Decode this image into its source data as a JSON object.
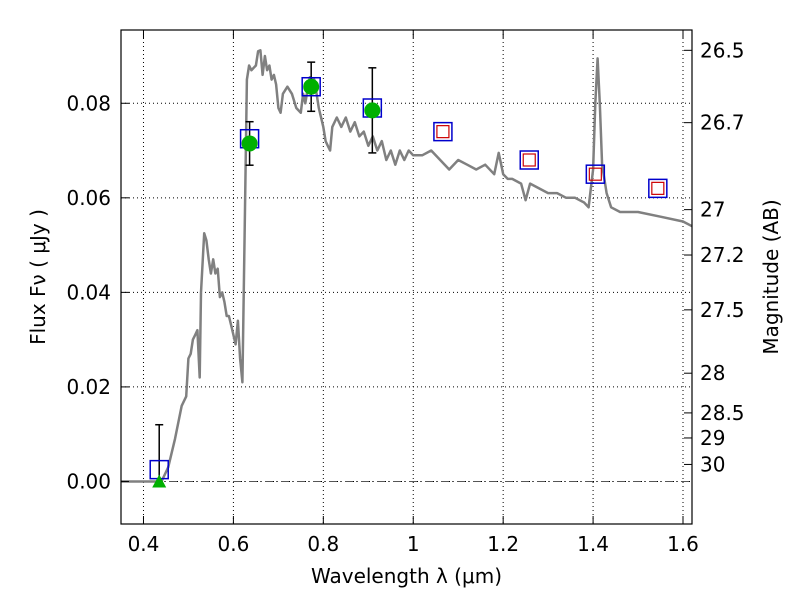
{
  "chart_data": {
    "type": "line",
    "xlabel": "Wavelength  λ (μm)",
    "ylabel": "Flux  Fν  ( μJy )",
    "y2label": "Magnitude (AB)",
    "xlim": [
      0.35,
      1.62
    ],
    "ylim": [
      -0.009,
      0.0955
    ],
    "grid": true,
    "xticks": [
      0.4,
      0.6,
      0.8,
      1.0,
      1.2,
      1.4,
      1.6
    ],
    "xtick_labels": [
      "0.4",
      "0.6",
      "0.8",
      "1",
      "1.2",
      "1.4",
      "1.6"
    ],
    "yticks": [
      0.0,
      0.02,
      0.04,
      0.06,
      0.08
    ],
    "ytick_labels": [
      "0.00",
      "0.02",
      "0.04",
      "0.06",
      "0.08"
    ],
    "y2_ticks": [
      {
        "label": "26.5",
        "flux": 0.0912
      },
      {
        "label": "26.7",
        "flux": 0.0759
      },
      {
        "label": "27",
        "flux": 0.0575
      },
      {
        "label": "27.2",
        "flux": 0.0479
      },
      {
        "label": "27.5",
        "flux": 0.0363
      },
      {
        "label": "28",
        "flux": 0.0229
      },
      {
        "label": "28.5",
        "flux": 0.0145
      },
      {
        "label": "29",
        "flux": 0.0092
      },
      {
        "label": "30",
        "flux": 0.0036
      }
    ],
    "zero_line": 0.0,
    "colors": {
      "model": "#808080",
      "observed": "#00b000",
      "box": "#0000cc",
      "inner_box": "#cc0000",
      "errorbar": "#000000",
      "zero_line": "#555555"
    },
    "series": [
      {
        "kind": "model_spectrum",
        "points": [
          [
            0.35,
            0.0
          ],
          [
            0.44,
            0.0
          ],
          [
            0.455,
            0.003
          ],
          [
            0.47,
            0.009
          ],
          [
            0.485,
            0.016
          ],
          [
            0.495,
            0.018
          ],
          [
            0.5,
            0.026
          ],
          [
            0.505,
            0.027
          ],
          [
            0.51,
            0.03
          ],
          [
            0.515,
            0.031
          ],
          [
            0.52,
            0.032
          ],
          [
            0.525,
            0.022
          ],
          [
            0.528,
            0.04
          ],
          [
            0.535,
            0.0525
          ],
          [
            0.54,
            0.051
          ],
          [
            0.545,
            0.047
          ],
          [
            0.55,
            0.044
          ],
          [
            0.555,
            0.047
          ],
          [
            0.56,
            0.044
          ],
          [
            0.565,
            0.045
          ],
          [
            0.57,
            0.039
          ],
          [
            0.575,
            0.04
          ],
          [
            0.58,
            0.038
          ],
          [
            0.585,
            0.035
          ],
          [
            0.59,
            0.035
          ],
          [
            0.595,
            0.033
          ],
          [
            0.6,
            0.031
          ],
          [
            0.605,
            0.029
          ],
          [
            0.61,
            0.034
          ],
          [
            0.615,
            0.026
          ],
          [
            0.62,
            0.021
          ],
          [
            0.625,
            0.052
          ],
          [
            0.63,
            0.085
          ],
          [
            0.635,
            0.088
          ],
          [
            0.64,
            0.087
          ],
          [
            0.65,
            0.088
          ],
          [
            0.655,
            0.091
          ],
          [
            0.66,
            0.0912
          ],
          [
            0.665,
            0.086
          ],
          [
            0.67,
            0.09
          ],
          [
            0.675,
            0.087
          ],
          [
            0.68,
            0.088
          ],
          [
            0.685,
            0.085
          ],
          [
            0.69,
            0.086
          ],
          [
            0.695,
            0.084
          ],
          [
            0.7,
            0.079
          ],
          [
            0.705,
            0.078
          ],
          [
            0.71,
            0.082
          ],
          [
            0.72,
            0.0835
          ],
          [
            0.73,
            0.082
          ],
          [
            0.74,
            0.079
          ],
          [
            0.75,
            0.078
          ],
          [
            0.755,
            0.082
          ],
          [
            0.76,
            0.08
          ],
          [
            0.765,
            0.083
          ],
          [
            0.77,
            0.0855
          ],
          [
            0.78,
            0.085
          ],
          [
            0.785,
            0.082
          ],
          [
            0.79,
            0.079
          ],
          [
            0.8,
            0.075
          ],
          [
            0.805,
            0.072
          ],
          [
            0.81,
            0.071
          ],
          [
            0.815,
            0.07
          ],
          [
            0.82,
            0.075
          ],
          [
            0.83,
            0.077
          ],
          [
            0.84,
            0.075
          ],
          [
            0.85,
            0.077
          ],
          [
            0.86,
            0.074
          ],
          [
            0.87,
            0.076
          ],
          [
            0.88,
            0.073
          ],
          [
            0.89,
            0.074
          ],
          [
            0.9,
            0.071
          ],
          [
            0.91,
            0.073
          ],
          [
            0.92,
            0.07
          ],
          [
            0.93,
            0.072
          ],
          [
            0.94,
            0.068
          ],
          [
            0.95,
            0.07
          ],
          [
            0.96,
            0.067
          ],
          [
            0.97,
            0.07
          ],
          [
            0.98,
            0.068
          ],
          [
            0.99,
            0.07
          ],
          [
            1.0,
            0.069
          ],
          [
            1.02,
            0.069
          ],
          [
            1.04,
            0.07
          ],
          [
            1.06,
            0.068
          ],
          [
            1.08,
            0.066
          ],
          [
            1.1,
            0.068
          ],
          [
            1.12,
            0.067
          ],
          [
            1.14,
            0.066
          ],
          [
            1.16,
            0.067
          ],
          [
            1.18,
            0.065
          ],
          [
            1.19,
            0.0695
          ],
          [
            1.2,
            0.065
          ],
          [
            1.21,
            0.064
          ],
          [
            1.22,
            0.064
          ],
          [
            1.24,
            0.063
          ],
          [
            1.25,
            0.0595
          ],
          [
            1.26,
            0.063
          ],
          [
            1.28,
            0.062
          ],
          [
            1.3,
            0.061
          ],
          [
            1.32,
            0.061
          ],
          [
            1.34,
            0.06
          ],
          [
            1.36,
            0.06
          ],
          [
            1.38,
            0.059
          ],
          [
            1.39,
            0.058
          ],
          [
            1.4,
            0.066
          ],
          [
            1.405,
            0.08
          ],
          [
            1.41,
            0.0895
          ],
          [
            1.415,
            0.08
          ],
          [
            1.42,
            0.067
          ],
          [
            1.43,
            0.061
          ],
          [
            1.44,
            0.058
          ],
          [
            1.46,
            0.057
          ],
          [
            1.5,
            0.057
          ],
          [
            1.55,
            0.056
          ],
          [
            1.6,
            0.055
          ],
          [
            1.62,
            0.054
          ]
        ]
      },
      {
        "kind": "observed_points",
        "points": [
          {
            "x": 0.636,
            "y": 0.0715,
            "err": 0.0046
          },
          {
            "x": 0.773,
            "y": 0.0835,
            "err": 0.0052
          },
          {
            "x": 0.909,
            "y": 0.0785,
            "err": 0.009
          }
        ]
      },
      {
        "kind": "upper_limit",
        "points": [
          {
            "x": 0.435,
            "y": 0.0,
            "err_high": 0.012
          }
        ]
      },
      {
        "kind": "model_photometry_boxes",
        "points": [
          {
            "x": 0.435,
            "y": 0.0025
          },
          {
            "x": 0.636,
            "y": 0.0725
          },
          {
            "x": 0.773,
            "y": 0.0835
          },
          {
            "x": 0.909,
            "y": 0.079
          },
          {
            "x": 1.066,
            "y": 0.074
          },
          {
            "x": 1.258,
            "y": 0.068
          },
          {
            "x": 1.405,
            "y": 0.065
          },
          {
            "x": 1.544,
            "y": 0.062
          }
        ]
      },
      {
        "kind": "inner_photometry_boxes",
        "points": [
          {
            "x": 1.066,
            "y": 0.074
          },
          {
            "x": 1.258,
            "y": 0.068
          },
          {
            "x": 1.405,
            "y": 0.065
          },
          {
            "x": 1.544,
            "y": 0.062
          }
        ]
      }
    ]
  }
}
